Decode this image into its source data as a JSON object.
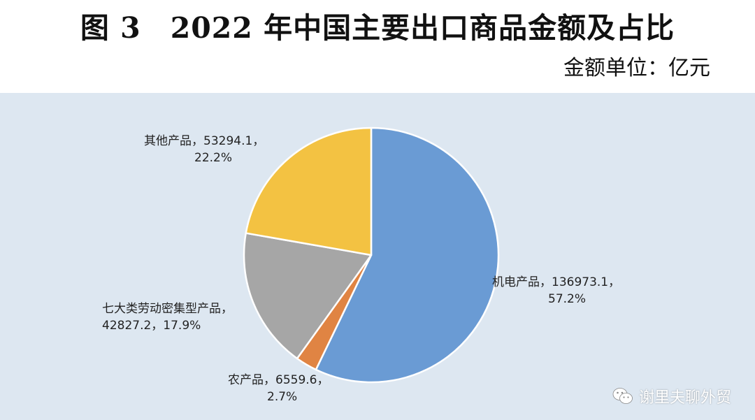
{
  "chart_data": {
    "type": "pie",
    "title": "图 3　2022 年中国主要出口商品金额及占比",
    "unit_label": "金额单位：亿元",
    "start_angle_deg": 0,
    "direction": "clockwise",
    "slices": [
      {
        "name": "机电产品",
        "value": 136973.1,
        "value_text": "136973.1",
        "percent_text": "57.2%",
        "color": "#6a9bd4",
        "label_lines": [
          "机电产品，136973.1，",
          "57.2%"
        ]
      },
      {
        "name": "农产品",
        "value": 6559.6,
        "value_text": "6559.6",
        "percent_text": "2.7%",
        "color": "#e08443",
        "label_lines": [
          "农产品，6559.6，",
          "2.7%"
        ]
      },
      {
        "name": "七大类劳动密集型产品",
        "value": 42827.2,
        "value_text": "42827.2",
        "percent_text": "17.9%",
        "color": "#a6a6a6",
        "label_lines": [
          "七大类劳动密集型产品，",
          "42827.2，17.9%"
        ]
      },
      {
        "name": "其他产品",
        "value": 53294.1,
        "value_text": "53294.1",
        "percent_text": "22.2%",
        "color": "#f3c242",
        "label_lines": [
          "其他产品，53294.1，",
          "22.2%"
        ]
      }
    ],
    "background_color": "#dde7f1",
    "slice_border_color": "#ffffff"
  },
  "watermark": {
    "icon": "wechat-icon",
    "text": "谢里夫聊外贸"
  }
}
